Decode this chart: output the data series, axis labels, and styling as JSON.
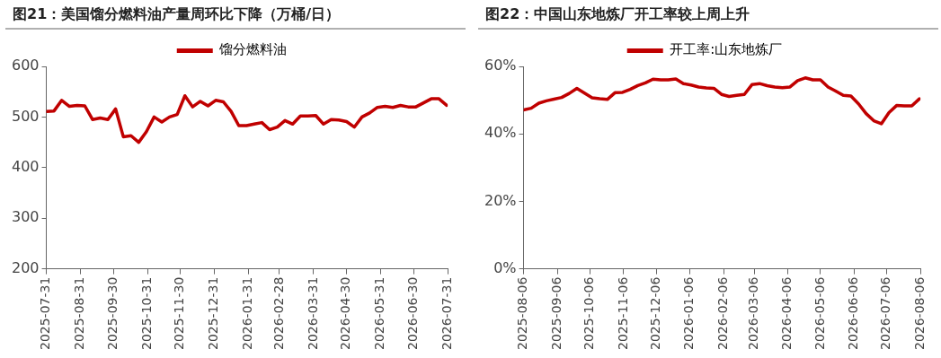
{
  "chart_data": [
    {
      "type": "line",
      "title": "图21：美国馏分燃料油产量周环比下降（万桶/日）",
      "legend": "top",
      "grid": false,
      "marker": "none",
      "line_style": "solid",
      "x": [
        "2025-07-31",
        "2025-08-07",
        "2025-08-14",
        "2025-08-21",
        "2025-08-28",
        "2025-09-04",
        "2025-09-11",
        "2025-09-18",
        "2025-09-25",
        "2025-10-02",
        "2025-10-09",
        "2025-10-16",
        "2025-10-23",
        "2025-10-30",
        "2025-11-06",
        "2025-11-13",
        "2025-11-20",
        "2025-11-27",
        "2025-12-04",
        "2025-12-11",
        "2025-12-18",
        "2025-12-25",
        "2026-01-01",
        "2026-01-08",
        "2026-01-15",
        "2026-01-22",
        "2026-01-29",
        "2026-02-05",
        "2026-02-12",
        "2026-02-19",
        "2026-02-26",
        "2026-03-05",
        "2026-03-12",
        "2026-03-19",
        "2026-03-26",
        "2026-04-02",
        "2026-04-09",
        "2026-04-16",
        "2026-04-23",
        "2026-04-30",
        "2026-05-07",
        "2026-05-14",
        "2026-05-21",
        "2026-05-28",
        "2026-06-04",
        "2026-06-11",
        "2026-06-18",
        "2026-06-25",
        "2026-07-02",
        "2026-07-09",
        "2026-07-16",
        "2026-07-23",
        "2026-07-30"
      ],
      "series": [
        {
          "name": "馏分燃料油",
          "color": "#c00000",
          "values": [
            511,
            512,
            533,
            521,
            523,
            522,
            495,
            498,
            495,
            516,
            461,
            463,
            450,
            471,
            500,
            490,
            500,
            505,
            542,
            520,
            531,
            522,
            533,
            530,
            511,
            483,
            483,
            486,
            489,
            475,
            480,
            493,
            486,
            502,
            502,
            503,
            486,
            495,
            494,
            491,
            480,
            500,
            508,
            519,
            521,
            519,
            523,
            520,
            520,
            528,
            536,
            536,
            523
          ]
        }
      ],
      "xlim": [
        "2025-07-31",
        "2026-07-31"
      ],
      "xticks": [
        {
          "value": "2025-07-31",
          "label": "2025-07-31"
        },
        {
          "value": "2025-08-31",
          "label": "2025-08-31"
        },
        {
          "value": "2025-09-30",
          "label": "2025-09-30"
        },
        {
          "value": "2025-10-31",
          "label": "2025-10-31"
        },
        {
          "value": "2025-11-30",
          "label": "2025-11-30"
        },
        {
          "value": "2025-12-31",
          "label": "2025-12-31"
        },
        {
          "value": "2026-01-31",
          "label": "2026-01-31"
        },
        {
          "value": "2026-02-28",
          "label": "2026-02-28"
        },
        {
          "value": "2026-03-31",
          "label": "2026-03-31"
        },
        {
          "value": "2026-04-30",
          "label": "2026-04-30"
        },
        {
          "value": "2026-05-31",
          "label": "2026-05-31"
        },
        {
          "value": "2026-06-30",
          "label": "2026-06-30"
        },
        {
          "value": "2026-07-31",
          "label": "2026-07-31"
        }
      ],
      "ylim": [
        200,
        600
      ],
      "yticks": [
        200,
        300,
        400,
        500,
        600
      ]
    },
    {
      "type": "line",
      "title": "图22：中国山东地炼厂开工率较上周上升",
      "legend": "top",
      "grid": false,
      "marker": "none",
      "line_style": "solid",
      "x": [
        "2025-08-06",
        "2025-08-13",
        "2025-08-20",
        "2025-08-27",
        "2025-09-03",
        "2025-09-10",
        "2025-09-17",
        "2025-09-24",
        "2025-10-01",
        "2025-10-08",
        "2025-10-15",
        "2025-10-22",
        "2025-10-29",
        "2025-11-05",
        "2025-11-12",
        "2025-11-19",
        "2025-11-26",
        "2025-12-03",
        "2025-12-10",
        "2025-12-17",
        "2025-12-24",
        "2025-12-31",
        "2026-01-07",
        "2026-01-14",
        "2026-01-21",
        "2026-01-28",
        "2026-02-04",
        "2026-02-11",
        "2026-02-18",
        "2026-02-25",
        "2026-03-04",
        "2026-03-11",
        "2026-03-18",
        "2026-03-25",
        "2026-04-01",
        "2026-04-08",
        "2026-04-15",
        "2026-04-22",
        "2026-04-29",
        "2026-05-06",
        "2026-05-13",
        "2026-05-20",
        "2026-05-27",
        "2026-06-03",
        "2026-06-10",
        "2026-06-17",
        "2026-06-24",
        "2026-07-01",
        "2026-07-08",
        "2026-07-15",
        "2026-07-22",
        "2026-07-29",
        "2026-08-05"
      ],
      "series": [
        {
          "name": "开工率:山东地炼厂",
          "color": "#c00000",
          "values": [
            47.1,
            47.6,
            49.1,
            49.8,
            50.3,
            50.8,
            52.0,
            53.5,
            52.1,
            50.7,
            50.4,
            50.2,
            52.2,
            52.3,
            53.2,
            54.3,
            55.1,
            56.2,
            56.0,
            56.0,
            56.3,
            54.9,
            54.5,
            53.9,
            53.6,
            53.5,
            51.7,
            51.1,
            51.4,
            51.7,
            54.6,
            54.9,
            54.3,
            53.9,
            53.7,
            53.9,
            55.8,
            56.6,
            56.0,
            56.0,
            53.9,
            52.7,
            51.4,
            51.2,
            48.9,
            46.0,
            43.9,
            43.0,
            46.3,
            48.4,
            48.3,
            48.3,
            50.4
          ]
        }
      ],
      "xlim": [
        "2025-08-06",
        "2026-08-06"
      ],
      "xticks": [
        {
          "value": "2025-08-06",
          "label": "2025-08-06"
        },
        {
          "value": "2025-09-06",
          "label": "2025-09-06"
        },
        {
          "value": "2025-10-06",
          "label": "2025-10-06"
        },
        {
          "value": "2025-11-06",
          "label": "2025-11-06"
        },
        {
          "value": "2025-12-06",
          "label": "2025-12-06"
        },
        {
          "value": "2026-01-06",
          "label": "2026-01-06"
        },
        {
          "value": "2026-02-06",
          "label": "2026-02-06"
        },
        {
          "value": "2026-03-06",
          "label": "2026-03-06"
        },
        {
          "value": "2026-04-06",
          "label": "2026-04-06"
        },
        {
          "value": "2026-05-06",
          "label": "2026-05-06"
        },
        {
          "value": "2026-06-06",
          "label": "2026-06-06"
        },
        {
          "value": "2026-07-06",
          "label": "2026-07-06"
        },
        {
          "value": "2026-08-06",
          "label": "2026-08-06"
        }
      ],
      "ylim": [
        0,
        60
      ],
      "yticks": [
        {
          "value": 0,
          "label": "0%"
        },
        {
          "value": 20,
          "label": "20%"
        },
        {
          "value": 40,
          "label": "40%"
        },
        {
          "value": 60,
          "label": "60%"
        }
      ]
    }
  ]
}
